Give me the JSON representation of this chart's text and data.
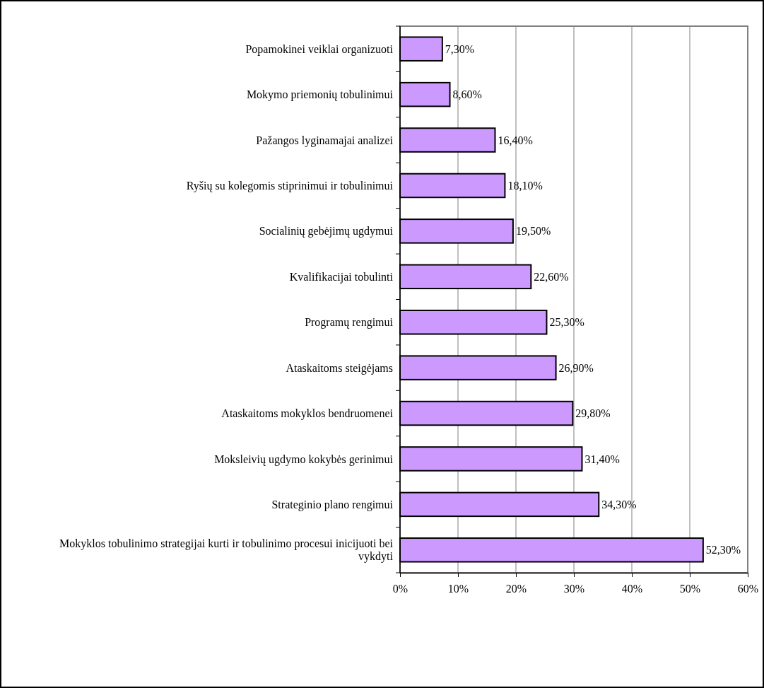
{
  "chart_data": {
    "type": "bar",
    "orientation": "horizontal",
    "categories": [
      "Popamokinei veiklai organizuoti",
      "Mokymo priemonių tobulinimui",
      "Pažangos lyginamajai analizei",
      "Ryšių su kolegomis stiprinimui ir tobulinimui",
      "Socialinių gebėjimų ugdymui",
      "Kvalifikacijai tobulinti",
      "Programų rengimui",
      "Ataskaitoms steigėjams",
      "Ataskaitoms mokyklos bendruomenei",
      "Moksleivių ugdymo kokybės gerinimui",
      "Strateginio plano rengimui",
      "Mokyklos tobulinimo strategijai kurti ir tobulinimo procesui inicijuoti bei vykdyti"
    ],
    "values": [
      7.3,
      8.6,
      16.4,
      18.1,
      19.5,
      22.6,
      25.3,
      26.9,
      29.8,
      31.4,
      34.3,
      52.3
    ],
    "value_labels": [
      "7,30%",
      "8,60%",
      "16,40%",
      "18,10%",
      "19,50%",
      "22,60%",
      "25,30%",
      "26,90%",
      "29,80%",
      "31,40%",
      "34,30%",
      "52,30%"
    ],
    "color": "#cc99ff",
    "xlim": [
      0,
      60
    ],
    "xticks": [
      {
        "value": 0,
        "label": "0%"
      },
      {
        "value": 10,
        "label": "10%"
      },
      {
        "value": 20,
        "label": "20%"
      },
      {
        "value": 30,
        "label": "30%"
      },
      {
        "value": 40,
        "label": "40%"
      },
      {
        "value": 50,
        "label": "50%"
      },
      {
        "value": 60,
        "label": "60%"
      }
    ],
    "grid": "x"
  }
}
